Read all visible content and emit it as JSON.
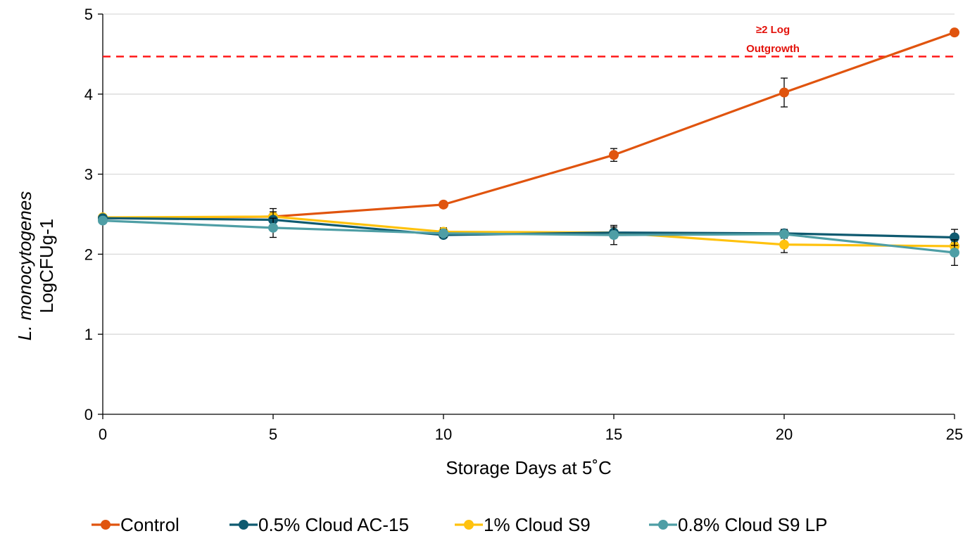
{
  "chart_data": {
    "type": "line",
    "title": "",
    "xlabel": "Storage Days at 5˚C",
    "ylabel_line1": "L. monocytogenes",
    "ylabel_line2": "LogCFUg-1",
    "x": [
      0,
      5,
      10,
      15,
      20,
      25
    ],
    "xlim": [
      0,
      25
    ],
    "ylim": [
      0,
      5
    ],
    "x_ticks": [
      "0",
      "5",
      "10",
      "15",
      "20",
      "25"
    ],
    "y_ticks": [
      "0",
      "1",
      "2",
      "3",
      "4",
      "5"
    ],
    "grid": "horizontal",
    "legend_position": "bottom",
    "series": [
      {
        "name": "Control",
        "color": "#e0540e",
        "values": [
          2.45,
          2.47,
          2.62,
          3.24,
          4.02,
          4.77
        ],
        "errors": [
          0.02,
          0.02,
          0.02,
          0.08,
          0.18,
          0.02
        ]
      },
      {
        "name": "0.5% Cloud AC-15",
        "color": "#0f5a70",
        "values": [
          2.45,
          2.43,
          2.24,
          2.27,
          2.26,
          2.21
        ],
        "errors": [
          0.02,
          0.1,
          0.03,
          0.04,
          0.05,
          0.1
        ]
      },
      {
        "name": "1% Cloud S9",
        "color": "#ffc20e",
        "values": [
          2.46,
          2.47,
          2.28,
          2.27,
          2.12,
          2.1
        ],
        "errors": [
          0.02,
          0.1,
          0.05,
          0.07,
          0.1,
          0.05
        ]
      },
      {
        "name": "0.8% Cloud S9 LP",
        "color": "#4e9ea5",
        "values": [
          2.42,
          2.33,
          2.26,
          2.24,
          2.25,
          2.02
        ],
        "errors": [
          0.02,
          0.12,
          0.05,
          0.12,
          0.05,
          0.16
        ]
      }
    ],
    "threshold": {
      "y": 4.47,
      "color": "#ff1a1a",
      "label_line1": "≥2 Log",
      "label_line2": "Outgrowth"
    }
  }
}
